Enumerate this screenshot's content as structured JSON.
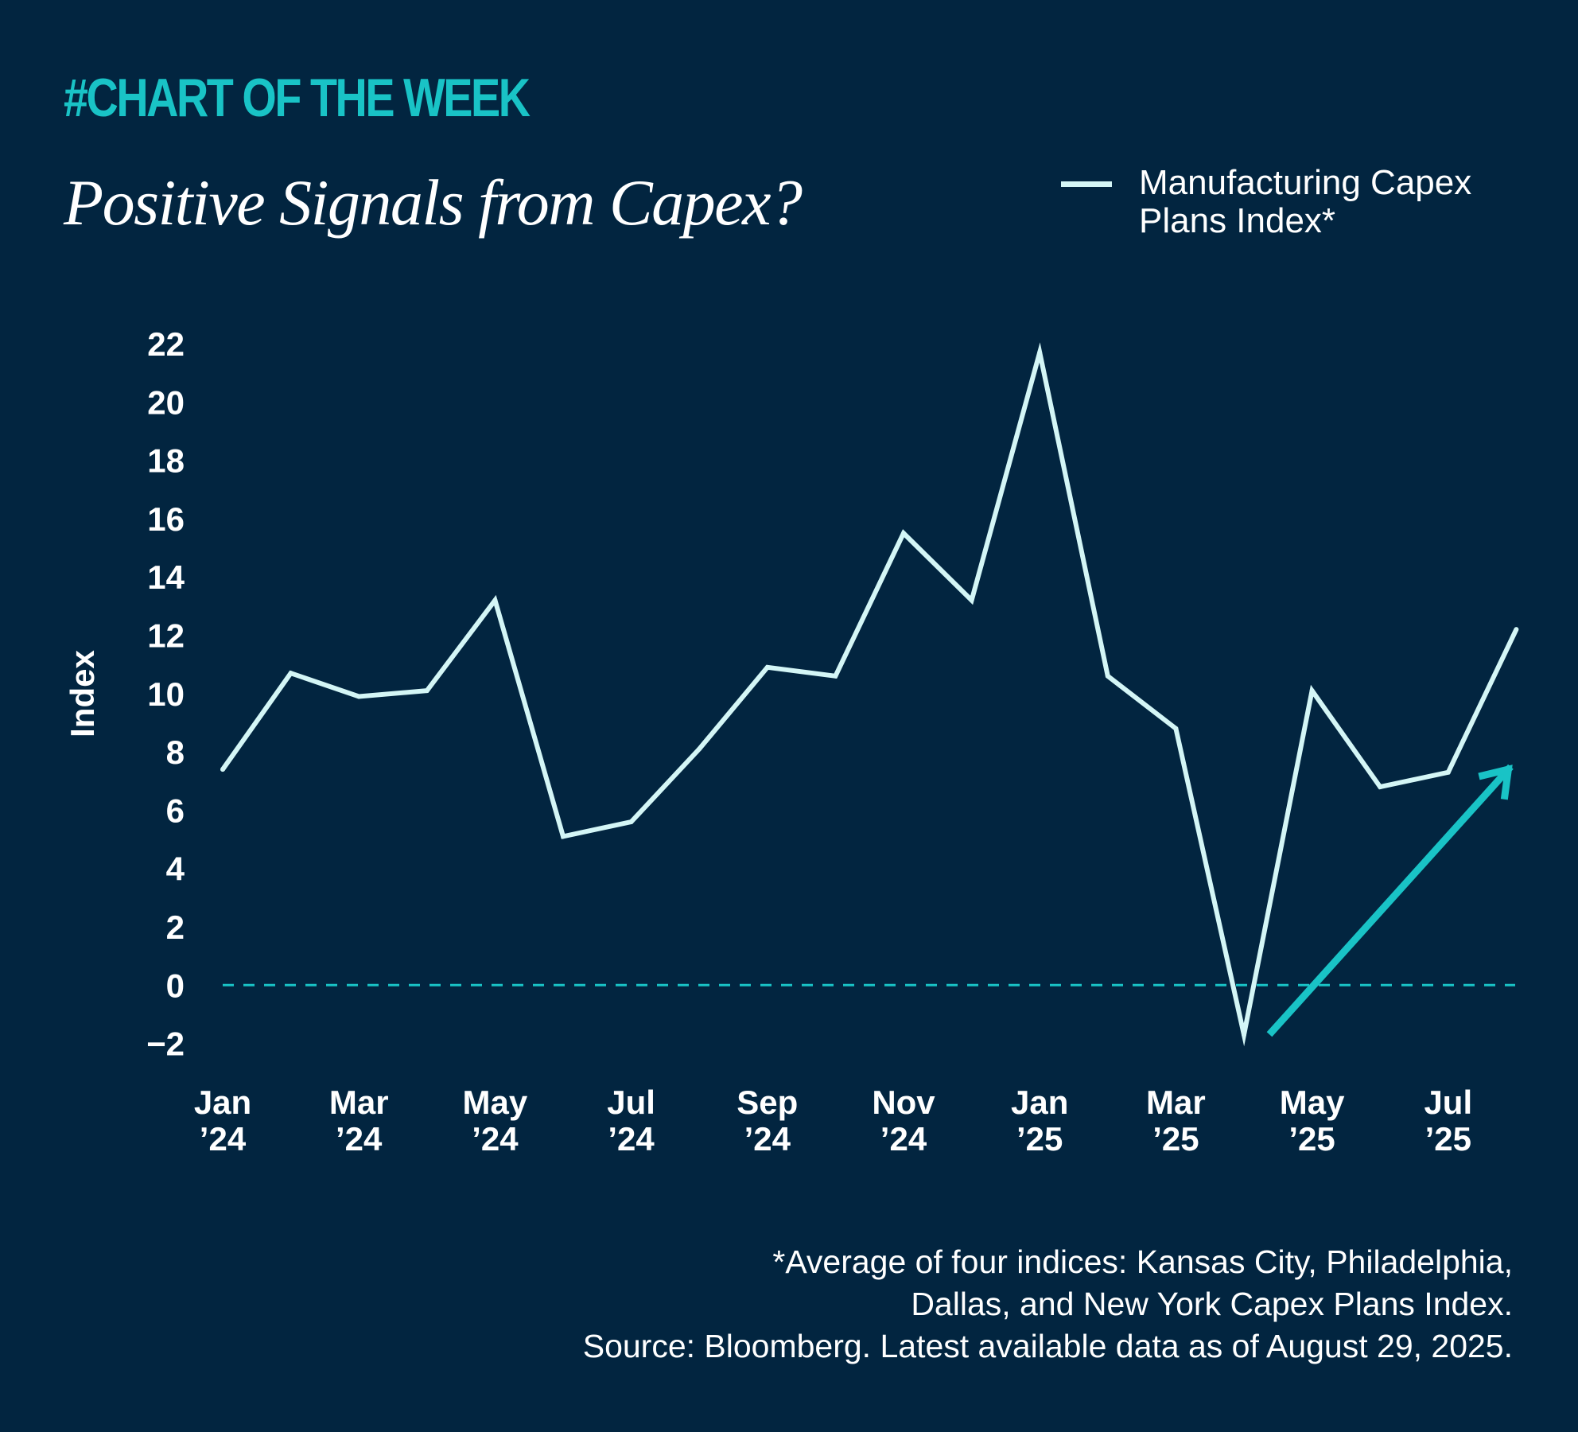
{
  "header": {
    "kicker": "#CHART OF THE WEEK",
    "title": "Positive Signals from Capex?"
  },
  "legend": {
    "label": "Manufacturing Capex Plans Index*"
  },
  "footnote": {
    "line1": "*Average of four indices: Kansas City, Philadelphia,",
    "line2": "Dallas, and New York Capex Plans Index.",
    "line3": "Source: Bloomberg. Latest available data as of August 29, 2025."
  },
  "colors": {
    "background": "#022540",
    "line": "#d4f6f6",
    "accent": "#19c3c6",
    "text": "#ffffff"
  },
  "chart_data": {
    "type": "line",
    "title": "Positive Signals from Capex?",
    "xlabel": "",
    "ylabel": "Index",
    "ylim": [
      -2,
      22
    ],
    "yticks": [
      -2,
      0,
      2,
      4,
      6,
      8,
      10,
      12,
      14,
      16,
      18,
      20,
      22
    ],
    "ytick_labels": [
      "−2",
      "0",
      "2",
      "4",
      "6",
      "8",
      "10",
      "12",
      "14",
      "16",
      "18",
      "20",
      "22"
    ],
    "x": [
      "Jan '24",
      "Feb '24",
      "Mar '24",
      "Apr '24",
      "May '24",
      "Jun '24",
      "Jul '24",
      "Aug '24",
      "Sep '24",
      "Oct '24",
      "Nov '24",
      "Dec '24",
      "Jan '25",
      "Feb '25",
      "Mar '25",
      "Apr '25",
      "May '25",
      "Jun '25",
      "Jul '25",
      "Aug '25"
    ],
    "xtick_labels": [
      [
        "Jan",
        "’24"
      ],
      [
        "Mar",
        "’24"
      ],
      [
        "May",
        "’24"
      ],
      [
        "Jul",
        "’24"
      ],
      [
        "Sep",
        "’24"
      ],
      [
        "Nov",
        "’24"
      ],
      [
        "Jan",
        "’25"
      ],
      [
        "Mar",
        "’25"
      ],
      [
        "May",
        "’25"
      ],
      [
        "Jul",
        "’25"
      ]
    ],
    "xtick_every": 2,
    "series": [
      {
        "name": "Manufacturing Capex Plans Index*",
        "values": [
          7.4,
          10.7,
          9.9,
          10.1,
          13.2,
          5.1,
          5.6,
          8.1,
          10.9,
          10.6,
          15.5,
          13.2,
          21.7,
          10.6,
          8.8,
          -1.7,
          10.1,
          6.8,
          7.3,
          12.2
        ]
      }
    ],
    "reference_line": {
      "y": 0,
      "style": "dashed"
    },
    "annotations": [
      {
        "type": "arrow",
        "from": [
          "Apr '25",
          -1.6
        ],
        "to": [
          "Aug '25",
          7.4
        ],
        "meaning": "upward trend"
      }
    ],
    "grid": false,
    "legend_position": "top-right"
  }
}
